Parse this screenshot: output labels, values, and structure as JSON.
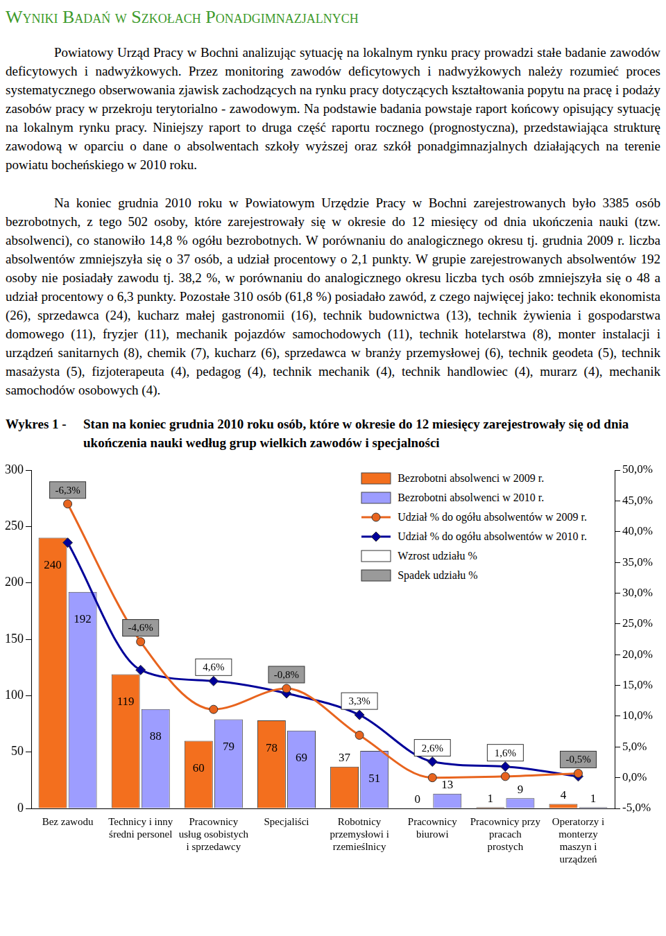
{
  "header": {
    "title": "Wyniki Badań w Szkołach Ponadgimnazjalnych"
  },
  "paragraphs": [
    "Powiatowy Urząd Pracy w Bochni analizując sytuację na lokalnym rynku pracy prowadzi stałe badanie zawodów deficytowych i nadwyżkowych. Przez monitoring zawodów deficytowych i nadwyżkowych należy rozumieć proces systematycznego obserwowania zjawisk zachodzących na rynku pracy dotyczących kształtowania popytu na pracę i podaży zasobów pracy w przekroju terytorialno - zawodowym. Na podstawie badania powstaje raport końcowy opisujący sytuację na lokalnym rynku pracy. Niniejszy raport to druga część raportu rocznego (prognostyczna), przedstawiająca strukturę zawodową w oparciu o dane o absolwentach szkoły wyższej oraz szkół ponadgimnazjalnych działających na terenie powiatu bocheńskiego w 2010 roku.",
    "Na koniec grudnia 2010 roku w Powiatowym Urzędzie Pracy w Bochni zarejestrowanych było 3385 osób bezrobotnych, z tego 502 osoby, które zarejestrowały się w okresie do 12 miesięcy od dnia ukończenia nauki (tzw. absolwenci), co stanowiło 14,8 % ogółu bezrobotnych. W porównaniu do analogicznego okresu tj. grudnia 2009 r. liczba absolwentów zmniejszyła się o 37 osób, a udział procentowy o 2,1 punkty. W grupie zarejestrowanych absolwentów 192 osoby nie posiadały zawodu tj. 38,2 %, w porównaniu do analogicznego okresu liczba tych osób zmniejszyła się o 48 a udział procentowy o 6,3 punkty. Pozostałe 310 osób (61,8 %) posiadało zawód, z czego najwięcej jako: technik ekonomista (26), sprzedawca (24), kucharz małej gastronomii (16), technik budownictwa (13), technik żywienia i gospodarstwa domowego (11), fryzjer (11), mechanik pojazdów samochodowych (11), technik hotelarstwa (8), monter instalacji i urządzeń sanitarnych (8), chemik (7), kucharz (6), sprzedawca w branży przemysłowej (6), technik geodeta (5), technik masażysta (5), fizjoterapeuta (4), pedagog (4), technik mechanik (4), technik handlowiec (4), murarz (4), mechanik samochodów osobowych (4)."
  ],
  "figure": {
    "label": "Wykres 1 -",
    "caption": "Stan na koniec grudnia 2010 roku osób, które w okresie do 12 miesięcy zarejestrowały się od dnia ukończenia nauki według grup wielkich zawodów i specjalności"
  },
  "chart_data": {
    "type": "bar",
    "categories": [
      [
        "Bez zawodu"
      ],
      [
        "Technicy i inny",
        "średni personel"
      ],
      [
        "Pracownicy",
        "usług osobistych",
        "i sprzedawcy"
      ],
      [
        "Specjaliści"
      ],
      [
        "Robotnicy",
        "przemysłowi i",
        "rzemieślnicy"
      ],
      [
        "Pracownicy",
        "biurowi"
      ],
      [
        "Pracownicy przy",
        "pracach",
        "prostych"
      ],
      [
        "Operatorzy i",
        "monterzy",
        "maszyn i",
        "urządzeń"
      ]
    ],
    "series": [
      {
        "name": "Bezrobotni absolwenci w 2009 r.",
        "type": "bar",
        "color": "#f36f1e",
        "data_labels": true,
        "values": [
          240,
          119,
          60,
          78,
          37,
          0,
          1,
          4
        ]
      },
      {
        "name": "Bezrobotni absolwenci w 2010 r.",
        "type": "bar",
        "color": "#9d9dff",
        "data_labels": true,
        "values": [
          192,
          88,
          79,
          69,
          51,
          13,
          9,
          1
        ]
      },
      {
        "name": "Udział % do ogółu absolwentów w 2009 r.",
        "type": "line",
        "axis": "y2",
        "color": "#e8641e",
        "marker": "circle",
        "line_style": "solid",
        "data_labels": false,
        "values": [
          44.5,
          22.1,
          11.1,
          14.5,
          6.9,
          0,
          0.2,
          0.7
        ]
      },
      {
        "name": "Udział % do ogółu absolwentów w 2010 r.",
        "type": "line",
        "axis": "y2",
        "color": "#000099",
        "marker": "diamond",
        "line_style": "solid",
        "data_labels": false,
        "values": [
          38.2,
          17.5,
          15.7,
          13.7,
          10.2,
          2.6,
          1.8,
          0.2
        ]
      }
    ],
    "share_change": {
      "values": [
        -6.3,
        -4.6,
        4.6,
        -0.8,
        3.3,
        2.6,
        1.6,
        -0.5
      ],
      "value_labels": [
        "-6,3%",
        "-4,6%",
        "4,6%",
        "-0,8%",
        "3,3%",
        "2,6%",
        "1,6%",
        "-0,5%"
      ],
      "increase": "Wzrost udziału %",
      "decrease": "Spadek udziału %"
    },
    "ylim": [
      0,
      300
    ],
    "yticks": [
      0,
      50,
      100,
      150,
      200,
      250,
      300
    ],
    "y2lim": [
      -5,
      50
    ],
    "y2ticks": [
      {
        "value": -5,
        "label": "-5,0%"
      },
      {
        "value": 0,
        "label": "0,0%"
      },
      {
        "value": 5,
        "label": "5,0%"
      },
      {
        "value": 10,
        "label": "10,0%"
      },
      {
        "value": 15,
        "label": "15,0%"
      },
      {
        "value": 20,
        "label": "20,0%"
      },
      {
        "value": 25,
        "label": "25,0%"
      },
      {
        "value": 30,
        "label": "30,0%"
      },
      {
        "value": 35,
        "label": "35,0%"
      },
      {
        "value": 40,
        "label": "40,0%"
      },
      {
        "value": 45,
        "label": "45,0%"
      },
      {
        "value": 50,
        "label": "50,0%"
      }
    ],
    "grid": false,
    "legend": "top-right"
  }
}
